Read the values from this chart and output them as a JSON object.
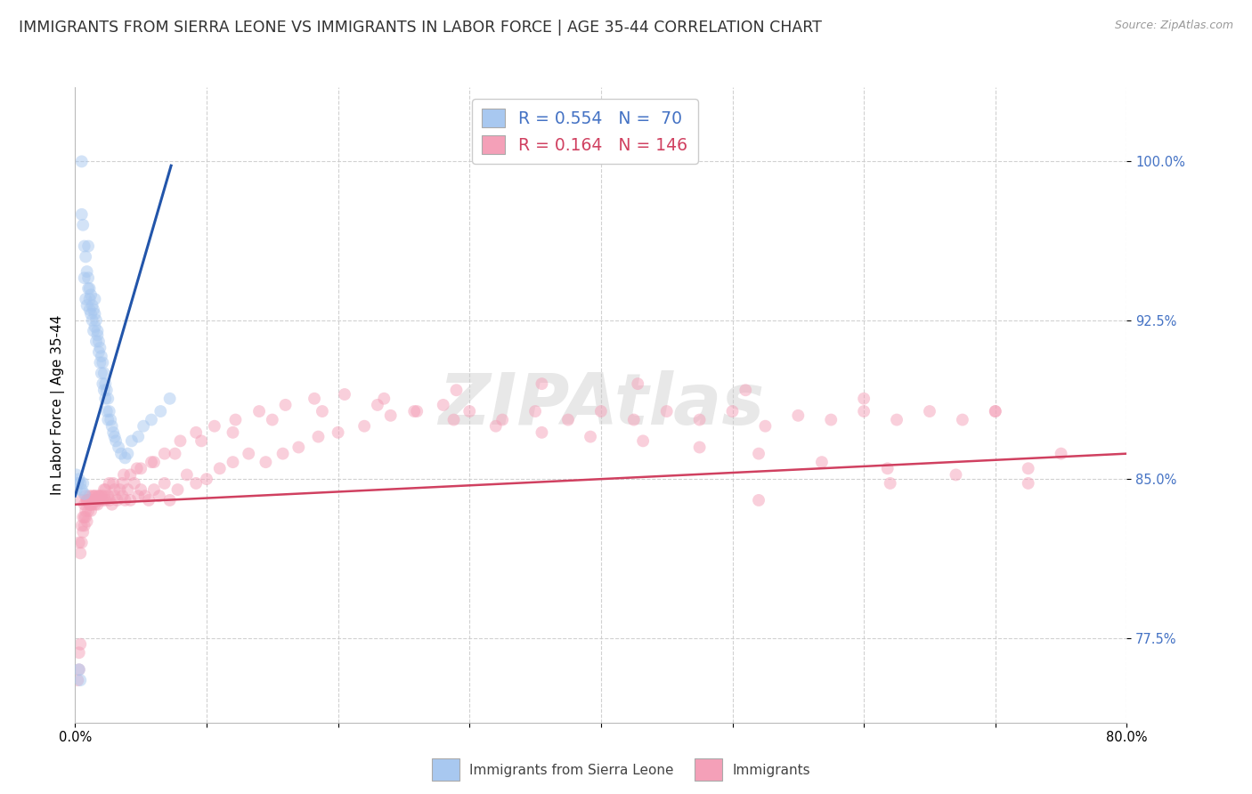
{
  "title": "IMMIGRANTS FROM SIERRA LEONE VS IMMIGRANTS IN LABOR FORCE | AGE 35-44 CORRELATION CHART",
  "source": "Source: ZipAtlas.com",
  "ylabel": "In Labor Force | Age 35-44",
  "xlim": [
    0.0,
    0.8
  ],
  "ylim": [
    0.735,
    1.035
  ],
  "yticks": [
    0.775,
    0.85,
    0.925,
    1.0
  ],
  "ytick_labels": [
    "77.5%",
    "85.0%",
    "92.5%",
    "100.0%"
  ],
  "xticks": [
    0.0,
    0.1,
    0.2,
    0.3,
    0.4,
    0.5,
    0.6,
    0.7,
    0.8
  ],
  "xtick_labels": [
    "0.0%",
    "",
    "",
    "",
    "",
    "",
    "",
    "",
    "80.0%"
  ],
  "blue_R": 0.554,
  "blue_N": 70,
  "pink_R": 0.164,
  "pink_N": 146,
  "blue_color": "#a8c8f0",
  "blue_line_color": "#2255aa",
  "pink_color": "#f4a0b8",
  "pink_line_color": "#d04060",
  "watermark": "ZIPAtlas",
  "legend_blue_label": "Immigrants from Sierra Leone",
  "legend_pink_label": "Immigrants",
  "blue_scatter_x": [
    0.005,
    0.005,
    0.006,
    0.007,
    0.007,
    0.008,
    0.008,
    0.009,
    0.009,
    0.01,
    0.01,
    0.01,
    0.011,
    0.011,
    0.011,
    0.012,
    0.012,
    0.013,
    0.013,
    0.014,
    0.014,
    0.015,
    0.015,
    0.015,
    0.016,
    0.016,
    0.017,
    0.017,
    0.018,
    0.018,
    0.019,
    0.019,
    0.02,
    0.02,
    0.021,
    0.021,
    0.022,
    0.022,
    0.023,
    0.023,
    0.024,
    0.024,
    0.025,
    0.025,
    0.026,
    0.027,
    0.028,
    0.029,
    0.03,
    0.031,
    0.033,
    0.035,
    0.038,
    0.04,
    0.043,
    0.048,
    0.052,
    0.058,
    0.065,
    0.072,
    0.001,
    0.001,
    0.002,
    0.003,
    0.004,
    0.005,
    0.006,
    0.007,
    0.003,
    0.004
  ],
  "blue_scatter_y": [
    1.0,
    0.975,
    0.97,
    0.96,
    0.945,
    0.955,
    0.935,
    0.948,
    0.932,
    0.945,
    0.94,
    0.96,
    0.94,
    0.935,
    0.93,
    0.937,
    0.928,
    0.932,
    0.925,
    0.93,
    0.92,
    0.928,
    0.922,
    0.935,
    0.925,
    0.915,
    0.92,
    0.918,
    0.915,
    0.91,
    0.912,
    0.905,
    0.908,
    0.9,
    0.905,
    0.895,
    0.9,
    0.892,
    0.895,
    0.888,
    0.892,
    0.882,
    0.888,
    0.878,
    0.882,
    0.878,
    0.875,
    0.872,
    0.87,
    0.868,
    0.865,
    0.862,
    0.86,
    0.862,
    0.868,
    0.87,
    0.875,
    0.878,
    0.882,
    0.888,
    0.852,
    0.845,
    0.848,
    0.85,
    0.848,
    0.845,
    0.848,
    0.843,
    0.76,
    0.755
  ],
  "pink_scatter_x": [
    0.002,
    0.003,
    0.003,
    0.004,
    0.005,
    0.005,
    0.006,
    0.007,
    0.007,
    0.008,
    0.008,
    0.009,
    0.009,
    0.01,
    0.01,
    0.011,
    0.011,
    0.012,
    0.012,
    0.013,
    0.013,
    0.014,
    0.015,
    0.015,
    0.016,
    0.017,
    0.018,
    0.019,
    0.02,
    0.021,
    0.022,
    0.023,
    0.025,
    0.026,
    0.028,
    0.03,
    0.032,
    0.034,
    0.036,
    0.038,
    0.04,
    0.042,
    0.045,
    0.048,
    0.05,
    0.053,
    0.056,
    0.06,
    0.064,
    0.068,
    0.072,
    0.078,
    0.085,
    0.092,
    0.1,
    0.11,
    0.12,
    0.132,
    0.145,
    0.158,
    0.17,
    0.185,
    0.2,
    0.22,
    0.24,
    0.26,
    0.28,
    0.3,
    0.325,
    0.35,
    0.375,
    0.4,
    0.425,
    0.45,
    0.475,
    0.5,
    0.525,
    0.55,
    0.575,
    0.6,
    0.625,
    0.65,
    0.675,
    0.7,
    0.725,
    0.75,
    0.003,
    0.005,
    0.007,
    0.009,
    0.012,
    0.015,
    0.018,
    0.022,
    0.026,
    0.03,
    0.036,
    0.042,
    0.05,
    0.058,
    0.068,
    0.08,
    0.092,
    0.106,
    0.122,
    0.14,
    0.16,
    0.182,
    0.205,
    0.23,
    0.258,
    0.288,
    0.32,
    0.355,
    0.392,
    0.432,
    0.475,
    0.52,
    0.568,
    0.618,
    0.67,
    0.725,
    0.004,
    0.006,
    0.008,
    0.011,
    0.014,
    0.018,
    0.023,
    0.029,
    0.037,
    0.047,
    0.06,
    0.076,
    0.096,
    0.12,
    0.15,
    0.188,
    0.235,
    0.29,
    0.355,
    0.428,
    0.51,
    0.6,
    0.7,
    0.52,
    0.62
  ],
  "pink_scatter_y": [
    0.755,
    0.76,
    0.768,
    0.772,
    0.84,
    0.82,
    0.832,
    0.838,
    0.828,
    0.835,
    0.842,
    0.84,
    0.83,
    0.84,
    0.835,
    0.842,
    0.838,
    0.835,
    0.84,
    0.838,
    0.842,
    0.84,
    0.842,
    0.838,
    0.84,
    0.838,
    0.842,
    0.84,
    0.842,
    0.84,
    0.842,
    0.84,
    0.842,
    0.84,
    0.838,
    0.842,
    0.84,
    0.845,
    0.842,
    0.84,
    0.845,
    0.84,
    0.848,
    0.842,
    0.845,
    0.842,
    0.84,
    0.845,
    0.842,
    0.848,
    0.84,
    0.845,
    0.852,
    0.848,
    0.85,
    0.855,
    0.858,
    0.862,
    0.858,
    0.862,
    0.865,
    0.87,
    0.872,
    0.875,
    0.88,
    0.882,
    0.885,
    0.882,
    0.878,
    0.882,
    0.878,
    0.882,
    0.878,
    0.882,
    0.878,
    0.882,
    0.875,
    0.88,
    0.878,
    0.882,
    0.878,
    0.882,
    0.878,
    0.882,
    0.855,
    0.862,
    0.82,
    0.828,
    0.832,
    0.84,
    0.838,
    0.842,
    0.84,
    0.845,
    0.848,
    0.845,
    0.848,
    0.852,
    0.855,
    0.858,
    0.862,
    0.868,
    0.872,
    0.875,
    0.878,
    0.882,
    0.885,
    0.888,
    0.89,
    0.885,
    0.882,
    0.878,
    0.875,
    0.872,
    0.87,
    0.868,
    0.865,
    0.862,
    0.858,
    0.855,
    0.852,
    0.848,
    0.815,
    0.825,
    0.832,
    0.838,
    0.84,
    0.842,
    0.845,
    0.848,
    0.852,
    0.855,
    0.858,
    0.862,
    0.868,
    0.872,
    0.878,
    0.882,
    0.888,
    0.892,
    0.895,
    0.895,
    0.892,
    0.888,
    0.882,
    0.84,
    0.848
  ],
  "blue_trend_x": [
    0.0,
    0.073
  ],
  "blue_trend_y": [
    0.842,
    0.998
  ],
  "pink_trend_x": [
    0.0,
    0.8
  ],
  "pink_trend_y": [
    0.838,
    0.862
  ],
  "background_color": "#ffffff",
  "grid_color": "#cccccc",
  "title_fontsize": 12.5,
  "axis_label_fontsize": 11,
  "tick_fontsize": 10.5,
  "marker_size": 100,
  "marker_alpha": 0.5
}
